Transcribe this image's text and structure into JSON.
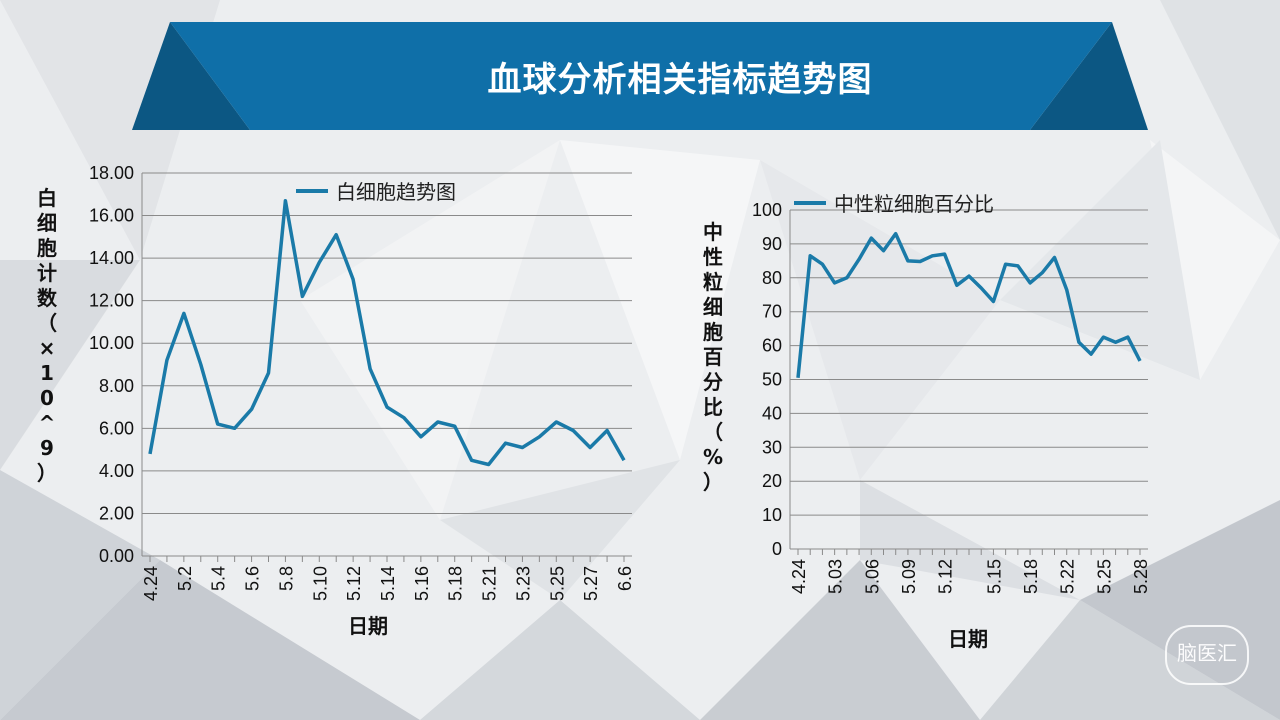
{
  "page": {
    "title": "血球分析相关指标趋势图",
    "watermark": "脑医汇"
  },
  "colors": {
    "banner": "#0f6fa8",
    "banner_dark": "#0c5783",
    "line": "#1a7aa8"
  },
  "chart_data": [
    {
      "type": "line",
      "title": "",
      "xlabel": "日期",
      "ylabel": "白细胞计数（×10^9）",
      "ylim": [
        0,
        18
      ],
      "yticks": [
        "0.00",
        "2.00",
        "4.00",
        "6.00",
        "8.00",
        "10.00",
        "12.00",
        "14.00",
        "16.00",
        "18.00"
      ],
      "xtick_labels": [
        "4.24",
        "5.2",
        "5.4",
        "5.6",
        "5.8",
        "5.10",
        "5.12",
        "5.14",
        "5.16",
        "5.18",
        "5.21",
        "5.23",
        "5.25",
        "5.27",
        "6.6"
      ],
      "legend_position": "top",
      "series": [
        {
          "name": "白细胞趋势图",
          "values": [
            4.8,
            9.2,
            11.4,
            9.0,
            6.2,
            6.0,
            6.9,
            8.6,
            16.7,
            12.2,
            13.8,
            15.1,
            13.0,
            8.8,
            7.0,
            6.5,
            5.6,
            6.3,
            6.1,
            4.5,
            4.3,
            5.3,
            5.1,
            5.6,
            6.3,
            5.9,
            5.1,
            5.9,
            4.5
          ]
        }
      ]
    },
    {
      "type": "line",
      "title": "",
      "xlabel": "日期",
      "ylabel": "中性粒细胞百分比（%）",
      "ylim": [
        0,
        100
      ],
      "yticks": [
        "0",
        "10",
        "20",
        "30",
        "40",
        "50",
        "60",
        "70",
        "80",
        "90",
        "100"
      ],
      "xtick_labels": [
        "4.24",
        "5.03",
        "5.06",
        "5.09",
        "5.12",
        "5.15",
        "5.18",
        "5.22",
        "5.25",
        "5.28"
      ],
      "legend_position": "top",
      "series": [
        {
          "name": "中性粒细胞百分比",
          "values": [
            50.5,
            86.5,
            84.0,
            78.5,
            80.0,
            85.5,
            91.7,
            88.0,
            93.0,
            85.0,
            84.8,
            86.5,
            87.0,
            77.8,
            80.5,
            77.0,
            73.0,
            84.0,
            83.5,
            78.5,
            81.5,
            86.0,
            76.5,
            61.0,
            57.5,
            62.5,
            61.0,
            62.5,
            55.5
          ]
        }
      ]
    }
  ]
}
